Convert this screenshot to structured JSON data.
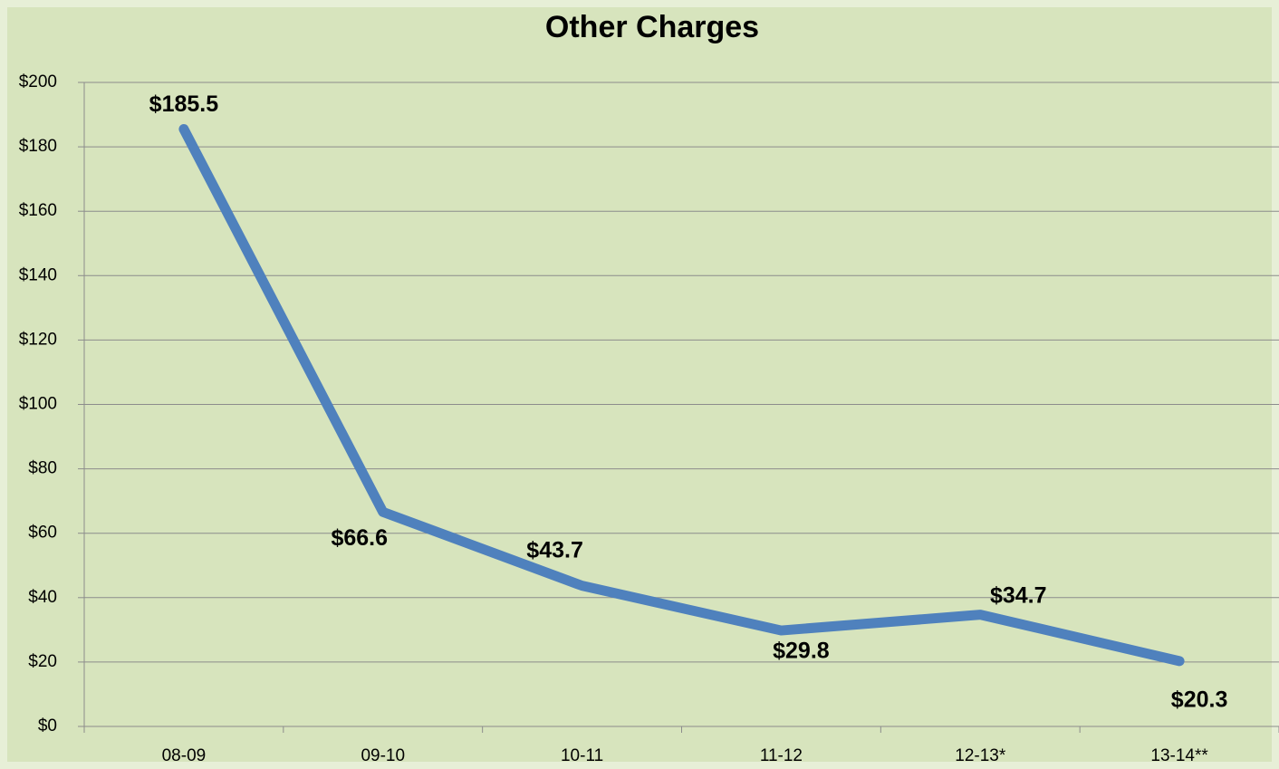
{
  "chart_data": {
    "type": "line",
    "title": "Other Charges",
    "categories": [
      "08-09",
      "09-10",
      "10-11",
      "11-12",
      "12-13*",
      "13-14**"
    ],
    "values": [
      185.5,
      66.6,
      43.7,
      29.8,
      34.7,
      20.3
    ],
    "value_labels": [
      "$185.5",
      "$66.6",
      "$43.7",
      "$29.8",
      "$34.7",
      "$20.3"
    ],
    "color": "#4f81bd",
    "ylim": [
      0,
      200
    ],
    "yticks": [
      {
        "value": 0,
        "label": "$0"
      },
      {
        "value": 20,
        "label": "$20"
      },
      {
        "value": 40,
        "label": "$40"
      },
      {
        "value": 60,
        "label": "$60"
      },
      {
        "value": 80,
        "label": "$80"
      },
      {
        "value": 100,
        "label": "$100"
      },
      {
        "value": 120,
        "label": "$120"
      },
      {
        "value": 140,
        "label": "$140"
      },
      {
        "value": 160,
        "label": "$160"
      },
      {
        "value": 180,
        "label": "$180"
      },
      {
        "value": 200,
        "label": "$200"
      }
    ],
    "grid": true
  }
}
